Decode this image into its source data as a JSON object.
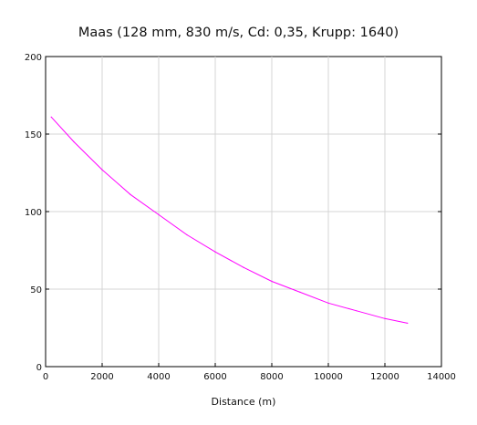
{
  "chart_data": {
    "type": "line",
    "title": "Maas (128 mm, 830 m/s, Cd: 0,35, Krupp: 1640)",
    "xlabel": "Distance (m)",
    "ylabel": "",
    "xlim": [
      0,
      14000
    ],
    "ylim": [
      0,
      200
    ],
    "xticks": [
      "0",
      "2000",
      "4000",
      "6000",
      "8000",
      "10000",
      "12000",
      "14000"
    ],
    "yticks": [
      "0",
      "50",
      "100",
      "150",
      "200"
    ],
    "grid": true,
    "legend": "none",
    "series": [
      {
        "color": "#ff00ff",
        "x": [
          200,
          1000,
          2000,
          3000,
          4000,
          5000,
          6000,
          7000,
          8000,
          9000,
          10000,
          11000,
          12000,
          12800
        ],
        "y": [
          161,
          145,
          127,
          111,
          98,
          85,
          74,
          64,
          55,
          48,
          41,
          36,
          31,
          28
        ]
      }
    ]
  }
}
